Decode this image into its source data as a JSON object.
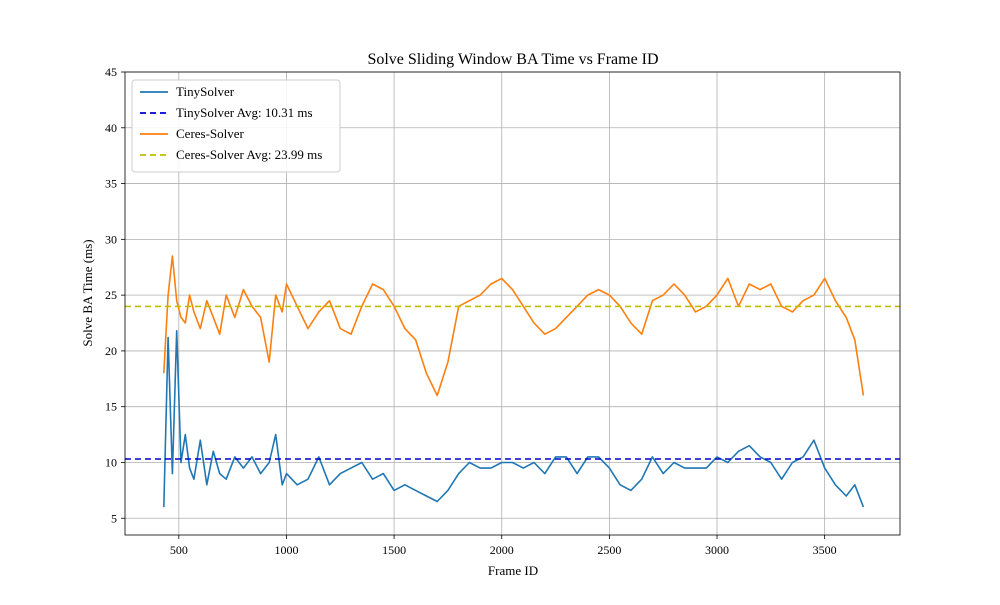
{
  "chart_data": {
    "type": "line",
    "title": "Solve Sliding Window BA Time vs Frame ID",
    "xlabel": "Frame ID",
    "ylabel": "Solve BA Time (ms)",
    "xlim": [
      250,
      3850
    ],
    "ylim": [
      3.5,
      45
    ],
    "x_ticks": [
      500,
      1000,
      1500,
      2000,
      2500,
      3000,
      3500
    ],
    "y_ticks": [
      5,
      10,
      15,
      20,
      25,
      30,
      35,
      40,
      45
    ],
    "grid": true,
    "legend_position": "top-left",
    "series": [
      {
        "name": "TinySolver",
        "color": "#1f77b4",
        "style": "solid",
        "x": [
          430,
          450,
          470,
          490,
          510,
          530,
          550,
          570,
          600,
          630,
          660,
          690,
          720,
          760,
          800,
          840,
          880,
          920,
          950,
          980,
          1000,
          1050,
          1100,
          1150,
          1200,
          1250,
          1300,
          1350,
          1400,
          1450,
          1500,
          1550,
          1600,
          1650,
          1700,
          1750,
          1800,
          1850,
          1900,
          1950,
          2000,
          2050,
          2100,
          2150,
          2200,
          2250,
          2300,
          2350,
          2400,
          2450,
          2500,
          2550,
          2600,
          2650,
          2700,
          2750,
          2800,
          2850,
          2900,
          2950,
          3000,
          3050,
          3100,
          3150,
          3200,
          3250,
          3300,
          3350,
          3400,
          3450,
          3500,
          3550,
          3600,
          3640,
          3680
        ],
        "values": [
          6.0,
          21.2,
          9.0,
          21.8,
          10.0,
          12.5,
          9.5,
          8.5,
          12.0,
          8.0,
          11.0,
          9.0,
          8.5,
          10.5,
          9.5,
          10.5,
          9.0,
          10.0,
          12.5,
          8.0,
          9.0,
          8.0,
          8.5,
          10.5,
          8.0,
          9.0,
          9.5,
          10.0,
          8.5,
          9.0,
          7.5,
          8.0,
          7.5,
          7.0,
          6.5,
          7.5,
          9.0,
          10.0,
          9.5,
          9.5,
          10.0,
          10.0,
          9.5,
          10.0,
          9.0,
          10.5,
          10.5,
          9.0,
          10.5,
          10.5,
          9.5,
          8.0,
          7.5,
          8.5,
          10.5,
          9.0,
          10.0,
          9.5,
          9.5,
          9.5,
          10.5,
          10.0,
          11.0,
          11.5,
          10.5,
          10.0,
          8.5,
          10.0,
          10.5,
          12.0,
          9.5,
          8.0,
          7.0,
          8.0,
          6.0
        ]
      },
      {
        "name": "TinySolver Avg: 10.31 ms",
        "color": "#0000cd",
        "style": "dashed",
        "constant": 10.31
      },
      {
        "name": "Ceres-Solver",
        "color": "#ff7f0e",
        "style": "solid",
        "x": [
          430,
          450,
          470,
          490,
          510,
          530,
          550,
          570,
          600,
          630,
          660,
          690,
          720,
          760,
          800,
          840,
          880,
          920,
          950,
          980,
          1000,
          1050,
          1100,
          1150,
          1200,
          1250,
          1300,
          1350,
          1400,
          1450,
          1500,
          1550,
          1600,
          1650,
          1700,
          1750,
          1800,
          1850,
          1900,
          1950,
          2000,
          2050,
          2100,
          2150,
          2200,
          2250,
          2300,
          2350,
          2400,
          2450,
          2500,
          2550,
          2600,
          2650,
          2700,
          2750,
          2800,
          2850,
          2900,
          2950,
          3000,
          3050,
          3100,
          3150,
          3200,
          3250,
          3300,
          3350,
          3400,
          3450,
          3500,
          3550,
          3600,
          3640,
          3680
        ],
        "values": [
          18.0,
          25.0,
          28.5,
          24.5,
          23.0,
          22.5,
          25.0,
          23.5,
          22.0,
          24.5,
          23.0,
          21.5,
          25.0,
          23.0,
          25.5,
          24.0,
          23.0,
          19.0,
          25.0,
          23.5,
          26.0,
          24.0,
          22.0,
          23.5,
          24.5,
          22.0,
          21.5,
          24.0,
          26.0,
          25.5,
          24.0,
          22.0,
          21.0,
          18.0,
          16.0,
          19.0,
          24.0,
          24.5,
          25.0,
          26.0,
          26.5,
          25.5,
          24.0,
          22.5,
          21.5,
          22.0,
          23.0,
          24.0,
          25.0,
          25.5,
          25.0,
          24.0,
          22.5,
          21.5,
          24.5,
          25.0,
          26.0,
          25.0,
          23.5,
          24.0,
          25.0,
          26.5,
          24.0,
          26.0,
          25.5,
          26.0,
          24.0,
          23.5,
          24.5,
          25.0,
          26.5,
          24.5,
          23.0,
          21.0,
          16.0
        ]
      },
      {
        "name": "Ceres-Solver Avg: 23.99 ms",
        "color": "#bfbf00",
        "style": "dashed",
        "constant": 23.99
      }
    ]
  }
}
